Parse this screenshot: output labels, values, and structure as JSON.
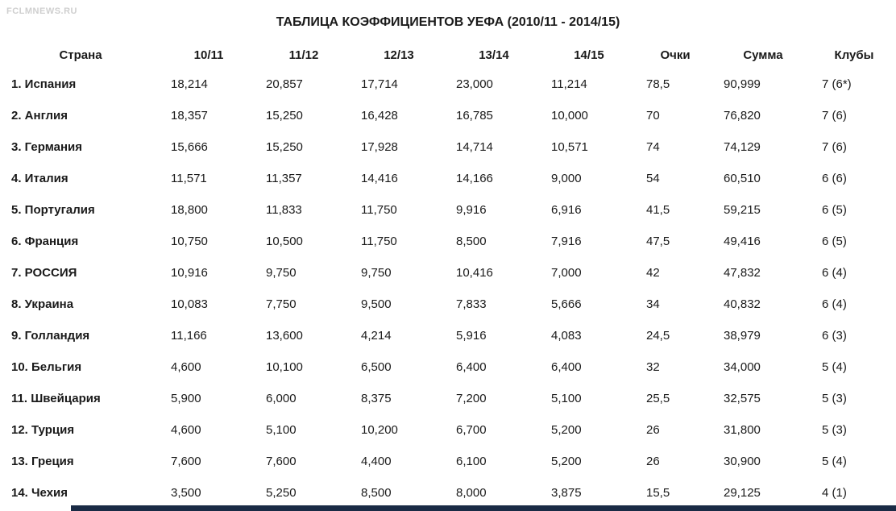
{
  "watermark": "FCLMNEWS.RU",
  "title": "ТАБЛИЦА КОЭФФИЦИЕНТОВ УЕФА (2010/11 - 2014/15)",
  "colors": {
    "text": "#1a1a1a",
    "watermark": "#cfcfcf",
    "footer_bar": "#1a2b45",
    "background": "#ffffff"
  },
  "table": {
    "headers": [
      "Страна",
      "10/11",
      "11/12",
      "12/13",
      "13/14",
      "14/15",
      "Очки",
      "Сумма",
      "Клубы"
    ],
    "rows": [
      {
        "country": "1. Испания",
        "values": [
          "18,214",
          "20,857",
          "17,714",
          "23,000",
          "11,214",
          "78,5",
          "90,999",
          "7 (6*)"
        ]
      },
      {
        "country": "2. Англия",
        "values": [
          "18,357",
          "15,250",
          "16,428",
          "16,785",
          "10,000",
          "70",
          "76,820",
          "7 (6)"
        ]
      },
      {
        "country": "3. Германия",
        "values": [
          "15,666",
          "15,250",
          "17,928",
          "14,714",
          "10,571",
          "74",
          "74,129",
          "7 (6)"
        ]
      },
      {
        "country": "4. Италия",
        "values": [
          "11,571",
          "11,357",
          "14,416",
          "14,166",
          "9,000",
          "54",
          "60,510",
          "6 (6)"
        ]
      },
      {
        "country": "5. Португалия",
        "values": [
          "18,800",
          "11,833",
          "11,750",
          "9,916",
          "6,916",
          "41,5",
          "59,215",
          "6 (5)"
        ]
      },
      {
        "country": "6. Франция",
        "values": [
          "10,750",
          "10,500",
          "11,750",
          "8,500",
          "7,916",
          "47,5",
          "49,416",
          "6 (5)"
        ]
      },
      {
        "country": "7. РОССИЯ",
        "values": [
          "10,916",
          "9,750",
          "9,750",
          "10,416",
          "7,000",
          "42",
          "47,832",
          "6 (4)"
        ]
      },
      {
        "country": "8. Украина",
        "values": [
          "10,083",
          "7,750",
          "9,500",
          "7,833",
          "5,666",
          "34",
          "40,832",
          "6 (4)"
        ]
      },
      {
        "country": "9. Голландия",
        "values": [
          "11,166",
          "13,600",
          "4,214",
          "5,916",
          "4,083",
          "24,5",
          "38,979",
          "6 (3)"
        ]
      },
      {
        "country": "10. Бельгия",
        "values": [
          "4,600",
          "10,100",
          "6,500",
          "6,400",
          "6,400",
          "32",
          "34,000",
          "5 (4)"
        ]
      },
      {
        "country": "11. Швейцария",
        "values": [
          "5,900",
          "6,000",
          "8,375",
          "7,200",
          "5,100",
          "25,5",
          "32,575",
          "5 (3)"
        ]
      },
      {
        "country": "12. Турция",
        "values": [
          "4,600",
          "5,100",
          "10,200",
          "6,700",
          "5,200",
          "26",
          "31,800",
          "5 (3)"
        ]
      },
      {
        "country": "13. Греция",
        "values": [
          "7,600",
          "7,600",
          "4,400",
          "6,100",
          "5,200",
          "26",
          "30,900",
          "5 (4)"
        ]
      },
      {
        "country": "14. Чехия",
        "values": [
          "3,500",
          "5,250",
          "8,500",
          "8,000",
          "3,875",
          "15,5",
          "29,125",
          "4 (1)"
        ]
      }
    ]
  }
}
